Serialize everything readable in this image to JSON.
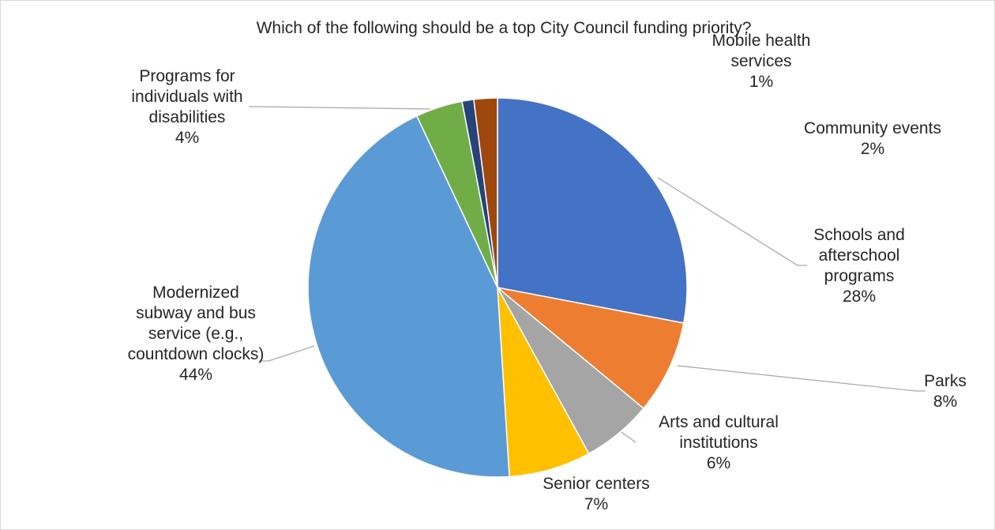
{
  "chart_data": {
    "type": "pie",
    "title": "Which of the following should be a top City Council funding priority?",
    "slices": [
      {
        "name": "Schools and afterschool programs",
        "label_lines": [
          "Schools and",
          "afterschool",
          "programs"
        ],
        "value": 28,
        "value_label": "28%",
        "color": "#4472C4"
      },
      {
        "name": "Parks",
        "label_lines": [
          "Parks"
        ],
        "value": 8,
        "value_label": "8%",
        "color": "#ED7D31"
      },
      {
        "name": "Arts and cultural institutions",
        "label_lines": [
          "Arts and cultural",
          "institutions"
        ],
        "value": 6,
        "value_label": "6%",
        "color": "#A5A5A5"
      },
      {
        "name": "Senior centers",
        "label_lines": [
          "Senior centers"
        ],
        "value": 7,
        "value_label": "7%",
        "color": "#FFC000"
      },
      {
        "name": "Modernized subway and bus service (e.g., countdown clocks)",
        "label_lines": [
          "Modernized",
          "subway and bus",
          "service (e.g.,",
          "countdown clocks)"
        ],
        "value": 44,
        "value_label": "44%",
        "color": "#5B9BD5"
      },
      {
        "name": "Programs for individuals with disabilities",
        "label_lines": [
          "Programs for",
          "individuals with",
          "disabilities"
        ],
        "value": 4,
        "value_label": "4%",
        "color": "#70AD47"
      },
      {
        "name": "Mobile health services",
        "label_lines": [
          "Mobile health",
          "services"
        ],
        "value": 1,
        "value_label": "1%",
        "color": "#264478"
      },
      {
        "name": "Community events",
        "label_lines": [
          "Community events"
        ],
        "value": 2,
        "value_label": "2%",
        "color": "#9E480E"
      }
    ]
  }
}
